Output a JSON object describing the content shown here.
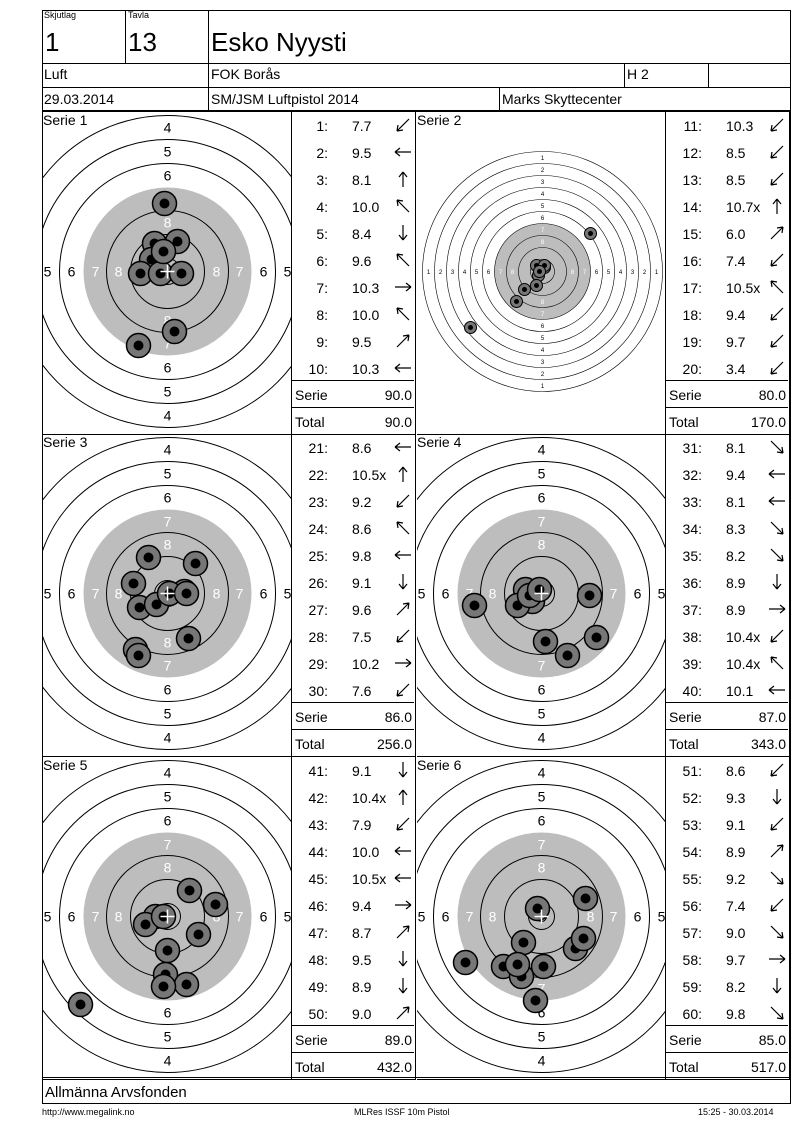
{
  "header": {
    "shooter_label": "Skjutlag",
    "shooter_value": "1",
    "target_label": "Tavla",
    "target_value": "13",
    "name": "Esko Nyysti",
    "class": "Luft",
    "club": "FOK Borås",
    "group": "H 2",
    "date": "29.03.2014",
    "event": "SM/JSM Luftpistol 2014",
    "venue": "Marks Skyttecenter"
  },
  "series": [
    {
      "label": "Serie 1",
      "summary_label": "Serie",
      "summary_value": "90.0",
      "total_label": "Total",
      "total_value": "90.0",
      "shots": [
        {
          "n": "1:",
          "v": "7.7",
          "dir": "sw"
        },
        {
          "n": "2:",
          "v": "9.5",
          "dir": "w"
        },
        {
          "n": "3:",
          "v": "8.1",
          "dir": "n"
        },
        {
          "n": "4:",
          "v": "10.0",
          "dir": "nw"
        },
        {
          "n": "5:",
          "v": "8.4",
          "dir": "s"
        },
        {
          "n": "6:",
          "v": "9.6",
          "dir": "nw"
        },
        {
          "n": "7:",
          "v": "10.3",
          "dir": "e"
        },
        {
          "n": "8:",
          "v": "10.0",
          "dir": "nw"
        },
        {
          "n": "9:",
          "v": "9.5",
          "dir": "ne"
        },
        {
          "n": "10:",
          "v": "10.3",
          "dir": "w"
        }
      ]
    },
    {
      "label": "Serie 2",
      "summary_label": "Serie",
      "summary_value": "80.0",
      "total_label": "Total",
      "total_value": "170.0",
      "shots": [
        {
          "n": "11:",
          "v": "10.3",
          "dir": "sw"
        },
        {
          "n": "12:",
          "v": "8.5",
          "dir": "sw"
        },
        {
          "n": "13:",
          "v": "8.5",
          "dir": "sw"
        },
        {
          "n": "14:",
          "v": "10.7x",
          "dir": "n"
        },
        {
          "n": "15:",
          "v": "6.0",
          "dir": "ne"
        },
        {
          "n": "16:",
          "v": "7.4",
          "dir": "sw"
        },
        {
          "n": "17:",
          "v": "10.5x",
          "dir": "nw"
        },
        {
          "n": "18:",
          "v": "9.4",
          "dir": "sw"
        },
        {
          "n": "19:",
          "v": "9.7",
          "dir": "sw"
        },
        {
          "n": "20:",
          "v": "3.4",
          "dir": "sw"
        }
      ]
    },
    {
      "label": "Serie 3",
      "summary_label": "Serie",
      "summary_value": "86.0",
      "total_label": "Total",
      "total_value": "256.0",
      "shots": [
        {
          "n": "21:",
          "v": "8.6",
          "dir": "w"
        },
        {
          "n": "22:",
          "v": "10.5x",
          "dir": "n"
        },
        {
          "n": "23:",
          "v": "9.2",
          "dir": "sw"
        },
        {
          "n": "24:",
          "v": "8.6",
          "dir": "nw"
        },
        {
          "n": "25:",
          "v": "9.8",
          "dir": "w"
        },
        {
          "n": "26:",
          "v": "9.1",
          "dir": "s"
        },
        {
          "n": "27:",
          "v": "9.6",
          "dir": "ne"
        },
        {
          "n": "28:",
          "v": "7.5",
          "dir": "sw"
        },
        {
          "n": "29:",
          "v": "10.2",
          "dir": "e"
        },
        {
          "n": "30:",
          "v": "7.6",
          "dir": "sw"
        }
      ]
    },
    {
      "label": "Serie 4",
      "summary_label": "Serie",
      "summary_value": "87.0",
      "total_label": "Total",
      "total_value": "343.0",
      "shots": [
        {
          "n": "31:",
          "v": "8.1",
          "dir": "se"
        },
        {
          "n": "32:",
          "v": "9.4",
          "dir": "w"
        },
        {
          "n": "33:",
          "v": "8.1",
          "dir": "w"
        },
        {
          "n": "34:",
          "v": "8.3",
          "dir": "se"
        },
        {
          "n": "35:",
          "v": "8.2",
          "dir": "se"
        },
        {
          "n": "36:",
          "v": "8.9",
          "dir": "s"
        },
        {
          "n": "37:",
          "v": "8.9",
          "dir": "e"
        },
        {
          "n": "38:",
          "v": "10.4x",
          "dir": "sw"
        },
        {
          "n": "39:",
          "v": "10.4x",
          "dir": "nw"
        },
        {
          "n": "40:",
          "v": "10.1",
          "dir": "w"
        }
      ]
    },
    {
      "label": "Serie 5",
      "summary_label": "Serie",
      "summary_value": "89.0",
      "total_label": "Total",
      "total_value": "432.0",
      "shots": [
        {
          "n": "41:",
          "v": "9.1",
          "dir": "s"
        },
        {
          "n": "42:",
          "v": "10.4x",
          "dir": "n"
        },
        {
          "n": "43:",
          "v": "7.9",
          "dir": "sw"
        },
        {
          "n": "44:",
          "v": "10.0",
          "dir": "w"
        },
        {
          "n": "45:",
          "v": "10.5x",
          "dir": "w"
        },
        {
          "n": "46:",
          "v": "9.4",
          "dir": "e"
        },
        {
          "n": "47:",
          "v": "8.7",
          "dir": "ne"
        },
        {
          "n": "48:",
          "v": "9.5",
          "dir": "s"
        },
        {
          "n": "49:",
          "v": "8.9",
          "dir": "s"
        },
        {
          "n": "50:",
          "v": "9.0",
          "dir": "ne"
        }
      ]
    },
    {
      "label": "Serie 6",
      "summary_label": "Serie",
      "summary_value": "85.0",
      "total_label": "Total",
      "total_value": "517.0",
      "shots": [
        {
          "n": "51:",
          "v": "8.6",
          "dir": "sw"
        },
        {
          "n": "52:",
          "v": "9.3",
          "dir": "s"
        },
        {
          "n": "53:",
          "v": "9.1",
          "dir": "sw"
        },
        {
          "n": "54:",
          "v": "8.9",
          "dir": "ne"
        },
        {
          "n": "55:",
          "v": "9.2",
          "dir": "se"
        },
        {
          "n": "56:",
          "v": "7.4",
          "dir": "sw"
        },
        {
          "n": "57:",
          "v": "9.0",
          "dir": "se"
        },
        {
          "n": "58:",
          "v": "9.7",
          "dir": "e"
        },
        {
          "n": "59:",
          "v": "8.2",
          "dir": "s"
        },
        {
          "n": "60:",
          "v": "9.8",
          "dir": "se"
        }
      ]
    }
  ],
  "target_ring_numbers": [
    "1",
    "2",
    "3",
    "4",
    "5",
    "6",
    "7",
    "8"
  ],
  "sponsor": "Allmänna Arvsfonden",
  "footer": {
    "url": "http://www.megalink.no",
    "software": "MLRes ISSF 10m Pistol",
    "timestamp": "15:25 - 30.03.2014"
  },
  "colors": {
    "grey_zone": "#bdbdbd",
    "shot_fill": "#777777",
    "shot_core": "#000000"
  }
}
